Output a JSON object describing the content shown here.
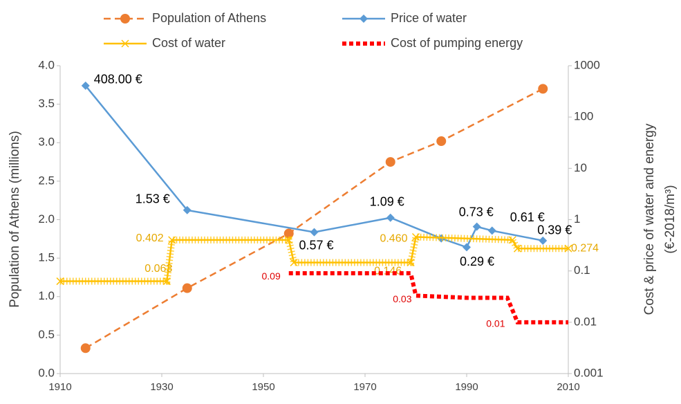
{
  "chart_data": {
    "type": "line",
    "y_title": "Population of Athens (millions)",
    "y2_title": [
      "Cost & price of water and energy",
      "(€-2018/m³)"
    ],
    "xlim": [
      1910,
      2010
    ],
    "xticks": [
      1910,
      1930,
      1950,
      1970,
      1990,
      2010
    ],
    "ylim": [
      0,
      4
    ],
    "yticks": [
      {
        "value": 0,
        "label": "0.0"
      },
      {
        "value": 0.5,
        "label": "0.5"
      },
      {
        "value": 1,
        "label": "1.0"
      },
      {
        "value": 1.5,
        "label": "1.5"
      },
      {
        "value": 2,
        "label": "2.0"
      },
      {
        "value": 2.5,
        "label": "2.5"
      },
      {
        "value": 3,
        "label": "3.0"
      },
      {
        "value": 3.5,
        "label": "3.5"
      },
      {
        "value": 4,
        "label": "4.0"
      }
    ],
    "y2lim": [
      0.001,
      1000
    ],
    "y2ticks": [
      0.001,
      0.01,
      0.1,
      1,
      10,
      100,
      1000
    ],
    "y2_log": true,
    "legend": "top",
    "series": [
      {
        "name": "Population of Athens",
        "color": "#ed7d31",
        "dash": "dashed",
        "marker": "circle",
        "x": [
          1915,
          1935,
          1955,
          1975,
          1985,
          2005
        ],
        "values": [
          0.33,
          1.11,
          1.82,
          2.75,
          3.02,
          3.7
        ]
      },
      {
        "name": "Price of water",
        "color": "#5b9bd5",
        "dash": "solid",
        "marker": "diamond",
        "axis": "y2",
        "x": [
          1915,
          1935,
          1960,
          1975,
          1985,
          1990,
          1992,
          1995,
          2005
        ],
        "values": [
          408,
          1.53,
          0.57,
          1.09,
          0.43,
          0.29,
          0.73,
          0.61,
          0.39
        ],
        "value_labels": [
          "408.00 €",
          "1.53 €",
          "0.57 €",
          "1.09 €",
          null,
          "0.29 €",
          "0.73 €",
          "0.61 €",
          "0.39 €"
        ]
      },
      {
        "name": "Cost of water",
        "color": "#ffc000",
        "dash": "solid",
        "marker": "x",
        "axis": "y2",
        "x": [
          1910,
          1931,
          1932,
          1955,
          1956,
          1979,
          1980,
          1999,
          2000,
          2010
        ],
        "values": [
          0.063,
          0.063,
          0.402,
          0.402,
          0.146,
          0.146,
          0.46,
          0.402,
          0.274,
          0.274
        ],
        "value_labels": [
          null,
          "0.063",
          "0.402",
          null,
          null,
          "0.146",
          "0.460",
          null,
          null,
          "0.274"
        ]
      },
      {
        "name": "Cost of pumping energy",
        "color": "#ff0000",
        "dash": "dotted",
        "marker": "none",
        "axis": "y2",
        "x": [
          1955,
          1979,
          1980,
          1990,
          1998,
          2000,
          2010
        ],
        "values": [
          0.09,
          0.09,
          0.033,
          0.03,
          0.03,
          0.01,
          0.01
        ],
        "value_labels": [
          "0.09",
          null,
          "0.03",
          null,
          null,
          "0.01",
          null
        ]
      }
    ]
  }
}
